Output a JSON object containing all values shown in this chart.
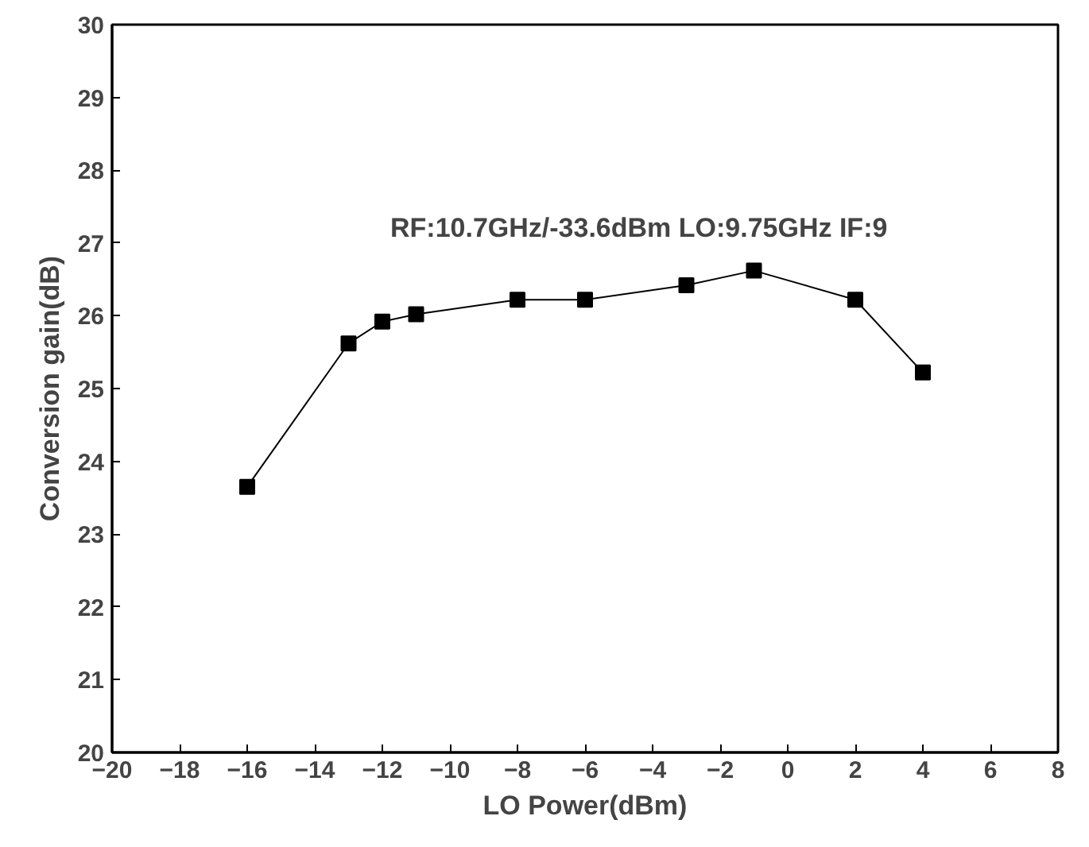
{
  "chart_data": {
    "type": "line",
    "xlabel": "LO Power(dBm)",
    "ylabel": "Conversion gain(dB)",
    "x": [
      -16,
      -13,
      -12,
      -11,
      -8,
      -6,
      -3,
      -1,
      2,
      4
    ],
    "series": [
      {
        "color": "#000000",
        "values": [
          23.65,
          25.62,
          25.92,
          26.02,
          26.22,
          26.22,
          26.42,
          26.62,
          26.22,
          25.22
        ]
      }
    ],
    "xlim": [
      -20,
      8
    ],
    "xticks": [
      -20,
      -18,
      -16,
      -14,
      -12,
      -10,
      -8,
      -6,
      -4,
      -2,
      0,
      2,
      4,
      6,
      8
    ],
    "ylim": [
      20,
      30
    ],
    "yticks": [
      20,
      21,
      22,
      23,
      24,
      25,
      26,
      27,
      28,
      29,
      30
    ],
    "annotations": [
      "RF:10.7GHz/-33.6dBm  LO:9.75GHz IF:9"
    ],
    "marker": "square",
    "line_style": "solid",
    "grid": false
  }
}
